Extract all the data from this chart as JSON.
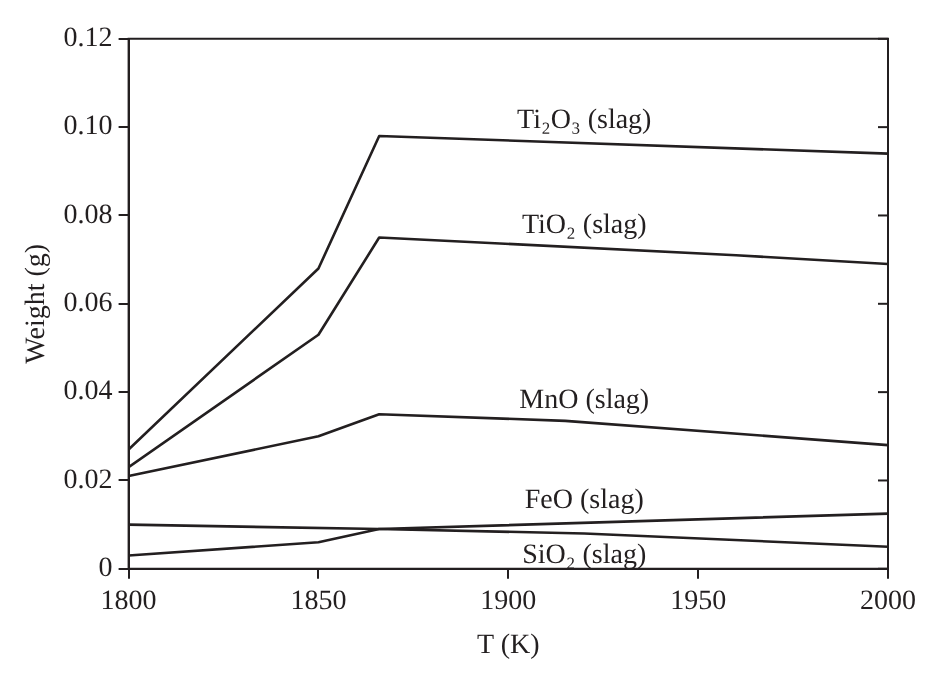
{
  "chart_data": {
    "type": "line",
    "xlabel": "T (K)",
    "ylabel": "Weight (g)",
    "xlim": [
      1800,
      2000
    ],
    "xticks": [
      1800,
      1850,
      1900,
      1950,
      2000
    ],
    "ylim": [
      0,
      0.12
    ],
    "yticks": [
      0,
      0.02,
      0.04,
      0.06,
      0.08,
      {
        "value": 0.1,
        "label": "0.10"
      },
      0.12
    ],
    "grid": false,
    "legend": false,
    "marker": "none",
    "line_style": "solid",
    "series": [
      {
        "name": "Ti₂O₃ (slag)",
        "color": "#231f20",
        "x": [
          1800,
          1850,
          1866,
          2000
        ],
        "values": [
          0.027,
          0.068,
          0.098,
          0.094
        ]
      },
      {
        "name": "TiO₂ (slag)",
        "color": "#231f20",
        "x": [
          1800,
          1850,
          1866,
          1960,
          2000
        ],
        "values": [
          0.023,
          0.053,
          0.075,
          0.071,
          0.069
        ]
      },
      {
        "name": "MnO (slag)",
        "color": "#231f20",
        "x": [
          1800,
          1850,
          1866,
          1915,
          2000
        ],
        "values": [
          0.021,
          0.03,
          0.035,
          0.0335,
          0.028
        ]
      },
      {
        "name": "FeO (slag)",
        "color": "#231f20",
        "x": [
          1800,
          1850,
          1866,
          2000
        ],
        "values": [
          0.003,
          0.006,
          0.009,
          0.0125
        ]
      },
      {
        "name": "SiO₂ (slag)",
        "color": "#231f20",
        "x": [
          1800,
          1866,
          1920,
          2000
        ],
        "values": [
          0.01,
          0.009,
          0.008,
          0.005
        ]
      }
    ]
  }
}
